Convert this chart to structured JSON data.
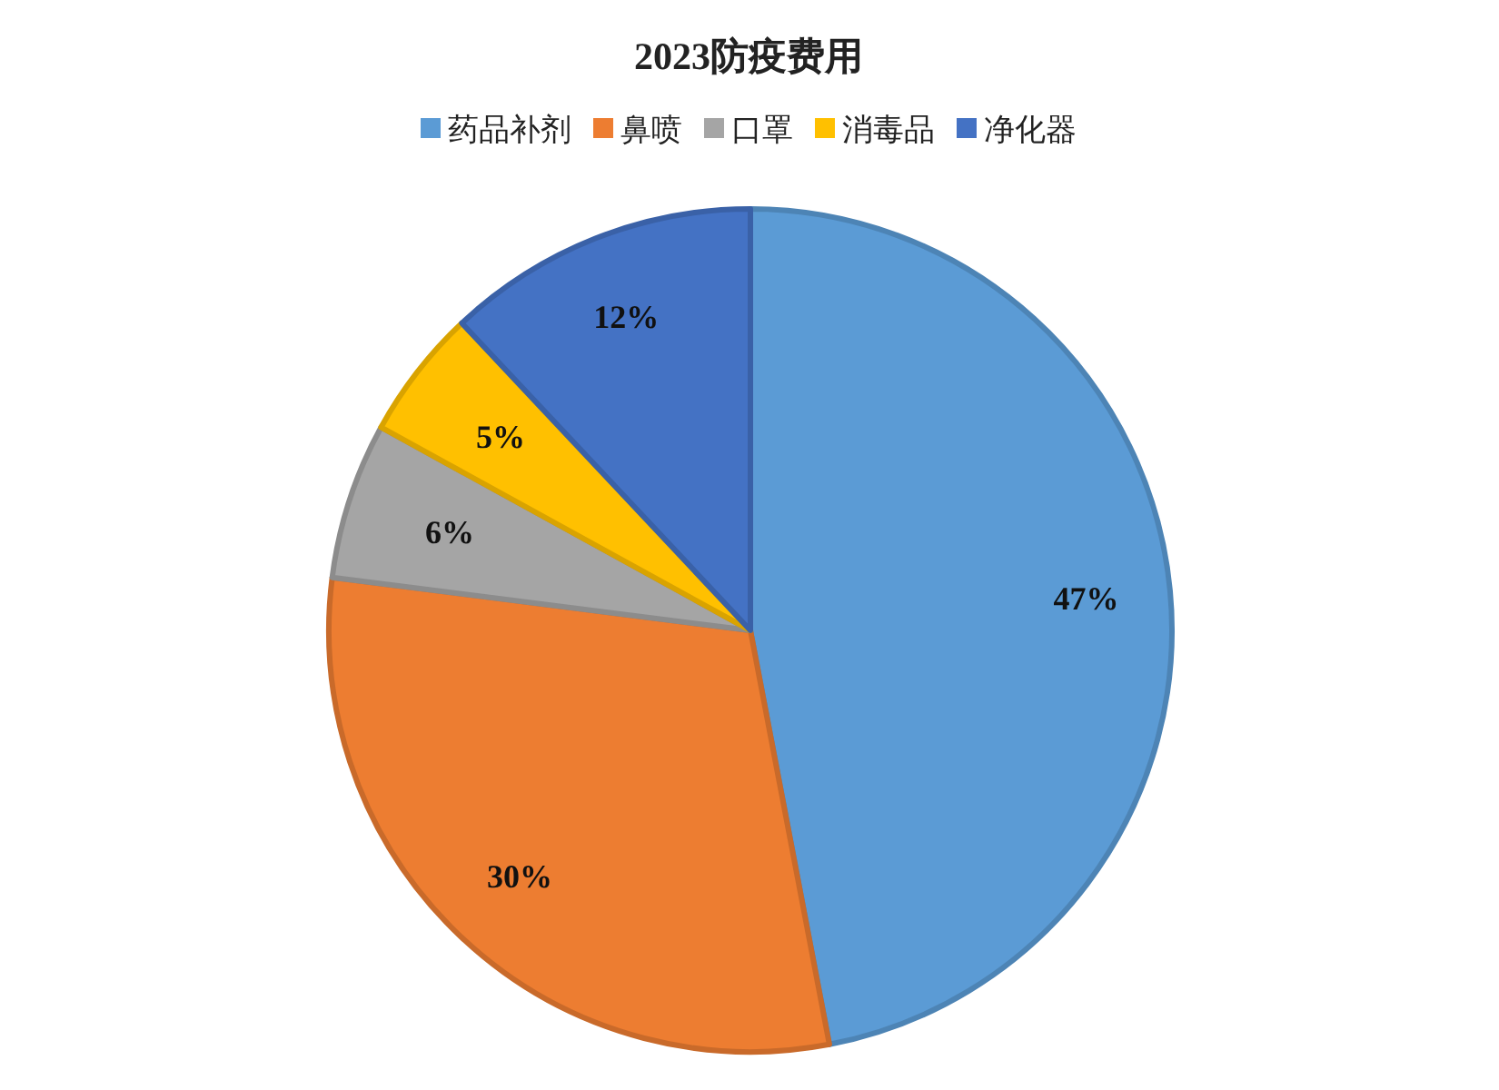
{
  "chart_data": {
    "type": "pie",
    "title": "2023防疫费用",
    "categories": [
      "药品补剂",
      "鼻喷",
      "口罩",
      "消毒品",
      "净化器"
    ],
    "values": [
      47,
      30,
      6,
      5,
      12
    ],
    "colors": [
      "#5b9bd5",
      "#ed7d31",
      "#a5a5a5",
      "#ffc000",
      "#4472c4"
    ],
    "value_labels": [
      "47%",
      "30%",
      "6%",
      "5%",
      "12%"
    ],
    "legend": "top"
  }
}
